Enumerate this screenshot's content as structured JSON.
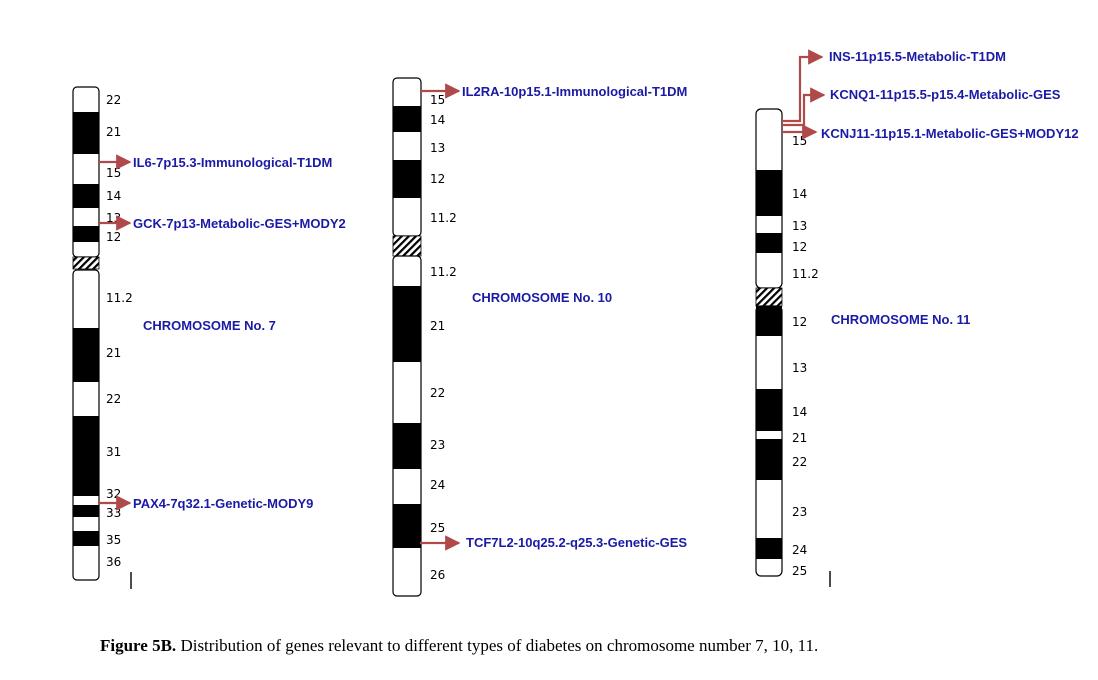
{
  "chromosomes": [
    {
      "id": "chr7",
      "title": "CHROMOSOME No. 7",
      "bands": [
        "22",
        "21",
        "15",
        "14",
        "13",
        "12",
        "11.2",
        "21",
        "22",
        "31",
        "32",
        "33",
        "35",
        "36"
      ],
      "genes": [
        "IL6-7p15.3-Immunological-T1DM",
        "GCK-7p13-Metabolic-GES+MODY2",
        "PAX4-7q32.1-Genetic-MODY9"
      ]
    },
    {
      "id": "chr10",
      "title": "CHROMOSOME No. 10",
      "bands": [
        "15",
        "14",
        "13",
        "12",
        "11.2",
        "11.2",
        "21",
        "22",
        "23",
        "24",
        "25",
        "26"
      ],
      "genes": [
        "IL2RA-10p15.1-Immunological-T1DM",
        "TCF7L2-10q25.2-q25.3-Genetic-GES"
      ]
    },
    {
      "id": "chr11",
      "title": "CHROMOSOME No. 11",
      "bands": [
        "15",
        "14",
        "13",
        "12",
        "11.2",
        "12",
        "13",
        "14",
        "21",
        "22",
        "23",
        "24",
        "25"
      ],
      "genes": [
        "INS-11p15.5-Metabolic-T1DM",
        "KCNQ1-11p15.5-p15.4-Metabolic-GES",
        "KCNJ11-11p15.1-Metabolic-GES+MODY12"
      ]
    }
  ],
  "colors": {
    "arrow": "#b04a4a",
    "label": "#1a1aa6",
    "band_dark": "#000000",
    "band_light": "#ffffff"
  },
  "caption": {
    "label": "Figure 5B.",
    "text": "Distribution of genes relevant to different types of diabetes on chromosome number 7, 10, 11."
  }
}
